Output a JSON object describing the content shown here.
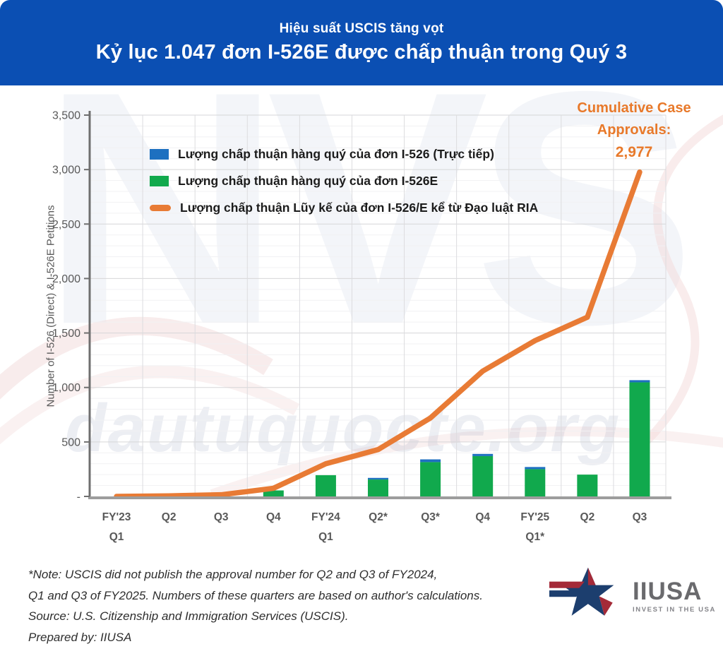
{
  "header": {
    "subtitle": "Hiệu suất USCIS tăng vọt",
    "title": "Kỷ lục 1.047 đơn I-526E được chấp thuận trong Quý 3",
    "bg_color": "#0B4FB3",
    "text_color": "#FFFFFF"
  },
  "chart_data": {
    "type": "bar",
    "subtype": "stacked bars + cumulative line",
    "ylabel": "Number of I-526 (Direct) & I-526E Petitions",
    "ylim": [
      0,
      3500
    ],
    "ytick_interval": 500,
    "ytick_labels": [
      "-",
      "500",
      "1,000",
      "1,500",
      "2,000",
      "2,500",
      "3,000",
      "3,500"
    ],
    "grid": true,
    "legend_position": "upper-left-inside",
    "categories": [
      "FY'23\nQ1",
      "Q2",
      "Q3",
      "Q4",
      "FY'24\nQ1",
      "Q2*",
      "Q3*",
      "Q4",
      "FY'25\nQ1*",
      "Q2",
      "Q3"
    ],
    "series": [
      {
        "name": "Lượng chấp thuận hàng quý của đơn I-526 (Trực tiếp)",
        "type": "bar",
        "color": "#1D70C0",
        "values": [
          0,
          0,
          0,
          0,
          0,
          15,
          25,
          20,
          20,
          0,
          20
        ]
      },
      {
        "name": "Lượng chấp thuận hàng quý của đơn I-526E",
        "type": "bar",
        "color": "#11A94D",
        "values": [
          0,
          0,
          0,
          55,
          195,
          155,
          315,
          370,
          250,
          200,
          1047
        ]
      },
      {
        "name": "Lượng chấp thuận Lũy kế của đơn I-526/E kể từ Đạo luật RIA",
        "type": "line",
        "color": "#E87B35",
        "values": [
          0,
          5,
          15,
          75,
          300,
          430,
          720,
          1150,
          1430,
          1645,
          2977
        ]
      }
    ],
    "annotation": {
      "line1": "Cumulative Case",
      "line2": "Approvals:",
      "value": "2,977",
      "color": "#E8792A"
    }
  },
  "watermark": {
    "large_text": "NVS",
    "small_text": "dautuquocte.org"
  },
  "notes": {
    "lines": [
      "*Note: USCIS did not publish the approval number for Q2 and Q3 of FY2024,",
      "Q1 and Q3 of FY2025. Numbers of these quarters are based on author's calculations.",
      "Source: U.S. Citizenship and Immigration Services (USCIS).",
      "Prepared by: IIUSA"
    ]
  },
  "logo": {
    "name": "IIUSA",
    "tagline": "INVEST IN THE USA",
    "navy": "#1C3E6E",
    "red": "#A42A38"
  }
}
